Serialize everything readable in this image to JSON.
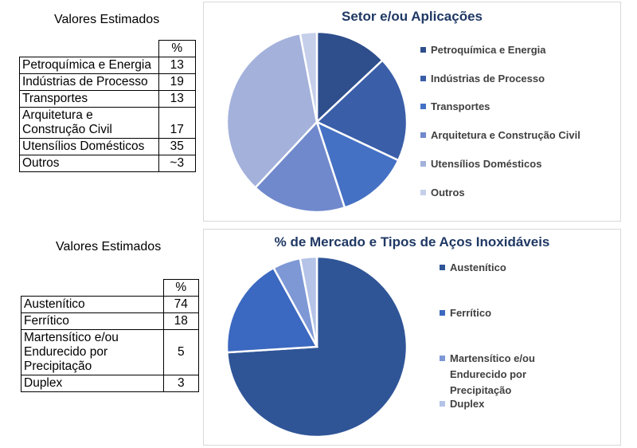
{
  "table1": {
    "title": "Valores Estimados",
    "header": "%",
    "rows": [
      {
        "label": "Petroquímica e Energia",
        "value": "13"
      },
      {
        "label": "Indústrias de Processo",
        "value": "19"
      },
      {
        "label": "Transportes",
        "value": "13"
      },
      {
        "label": "Arquitetura e\nConstrução Civil",
        "value": "17"
      },
      {
        "label": "Utensílios Domésticos",
        "value": "35"
      },
      {
        "label": "Outros",
        "value": "~3"
      }
    ]
  },
  "table2": {
    "title": "Valores Estimados",
    "header": "%",
    "rows": [
      {
        "label": "Austenítico",
        "value": "74"
      },
      {
        "label": "Ferrítico",
        "value": "18"
      },
      {
        "label": "Martensítico e/ou\nEndurecido por\nPrecipitação",
        "value": "5"
      },
      {
        "label": "Duplex",
        "value": "3"
      }
    ]
  },
  "chart_data": [
    {
      "type": "pie",
      "title": "Setor e/ou Aplicações",
      "legend_position": "right",
      "categories": [
        "Petroquímica e Energia",
        "Indústrias de Processo",
        "Transportes",
        "Arquitetura e Construção Civil",
        "Utensílios Domésticos",
        "Outros"
      ],
      "values": [
        13,
        19,
        13,
        17,
        35,
        3
      ],
      "colors": [
        "#2e4e8c",
        "#3a5ea8",
        "#4471c4",
        "#7089cc",
        "#a3b1db",
        "#c5cfea"
      ]
    },
    {
      "type": "pie",
      "title": "% de Mercado e Tipos de Aços Inoxidáveis",
      "legend_position": "right",
      "categories": [
        "Austenítico",
        "Ferrítico",
        "Martensítico e/ou Endurecido por Precipitação",
        "Duplex"
      ],
      "values": [
        74,
        18,
        5,
        3
      ],
      "colors": [
        "#2f5597",
        "#3b68c0",
        "#7e98d6",
        "#b4c3e7"
      ]
    }
  ]
}
